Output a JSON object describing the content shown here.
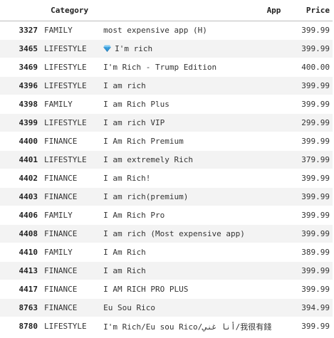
{
  "table": {
    "columns": {
      "index": "",
      "category": "Category",
      "app": "App",
      "price": "Price"
    },
    "rows": [
      {
        "index": "3327",
        "category": "FAMILY",
        "app": "most expensive app (H)",
        "price": "399.99",
        "icon": ""
      },
      {
        "index": "3465",
        "category": "LIFESTYLE",
        "app": "I'm rich",
        "price": "399.99",
        "icon": "gem-icon"
      },
      {
        "index": "3469",
        "category": "LIFESTYLE",
        "app": "I'm Rich - Trump Edition",
        "price": "400.00",
        "icon": ""
      },
      {
        "index": "4396",
        "category": "LIFESTYLE",
        "app": "I am rich",
        "price": "399.99",
        "icon": ""
      },
      {
        "index": "4398",
        "category": "FAMILY",
        "app": "I am Rich Plus",
        "price": "399.99",
        "icon": ""
      },
      {
        "index": "4399",
        "category": "LIFESTYLE",
        "app": "I am rich VIP",
        "price": "299.99",
        "icon": ""
      },
      {
        "index": "4400",
        "category": "FINANCE",
        "app": "I Am Rich Premium",
        "price": "399.99",
        "icon": ""
      },
      {
        "index": "4401",
        "category": "LIFESTYLE",
        "app": "I am extremely Rich",
        "price": "379.99",
        "icon": ""
      },
      {
        "index": "4402",
        "category": "FINANCE",
        "app": "I am Rich!",
        "price": "399.99",
        "icon": ""
      },
      {
        "index": "4403",
        "category": "FINANCE",
        "app": "I am rich(premium)",
        "price": "399.99",
        "icon": ""
      },
      {
        "index": "4406",
        "category": "FAMILY",
        "app": "I Am Rich Pro",
        "price": "399.99",
        "icon": ""
      },
      {
        "index": "4408",
        "category": "FINANCE",
        "app": "I am rich (Most expensive app)",
        "price": "399.99",
        "icon": ""
      },
      {
        "index": "4410",
        "category": "FAMILY",
        "app": "I Am Rich",
        "price": "389.99",
        "icon": ""
      },
      {
        "index": "4413",
        "category": "FINANCE",
        "app": "I am Rich",
        "price": "399.99",
        "icon": ""
      },
      {
        "index": "4417",
        "category": "FINANCE",
        "app": "I AM RICH PRO PLUS",
        "price": "399.99",
        "icon": ""
      },
      {
        "index": "8763",
        "category": "FINANCE",
        "app": "Eu Sou Rico",
        "price": "394.99",
        "icon": ""
      },
      {
        "index": "8780",
        "category": "LIFESTYLE",
        "app": "I'm Rich/Eu sou Rico/أنا غني/我很有錢",
        "price": "399.99",
        "icon": ""
      }
    ]
  },
  "colors": {
    "stripe": "#f3f3f3",
    "gem": "#3aa3e3"
  }
}
